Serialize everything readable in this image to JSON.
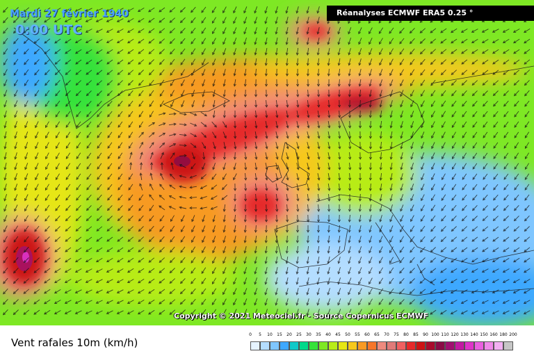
{
  "header": {
    "date_line": "Mardi 27 février 1940",
    "time_line": "0:00 UTC",
    "source": "Réanalyses ECMWF ERA5 0.25 °"
  },
  "map": {
    "copyright": "Copyright © 2021 Meteociel.fr - Source Copernicus ECMWF",
    "wind_direction_dominant": "south-southeast"
  },
  "legend": {
    "field_title": "Vent rafales 10m (km/h)",
    "ticks": [
      "0",
      "5",
      "10",
      "15",
      "20",
      "25",
      "30",
      "35",
      "40",
      "45",
      "50",
      "55",
      "60",
      "65",
      "70",
      "75",
      "80",
      "85",
      "90",
      "100",
      "110",
      "120",
      "130",
      "140",
      "150",
      "160",
      "180",
      "200"
    ],
    "colors": [
      "#e6f3ff",
      "#b4ddff",
      "#7fc6ff",
      "#3ea8ff",
      "#0fc9c9",
      "#00d98a",
      "#35e23a",
      "#7ee824",
      "#b8ec18",
      "#e6e614",
      "#f6c81c",
      "#f79a24",
      "#f5762a",
      "#ee8a7e",
      "#e07a78",
      "#f06060",
      "#e62a2a",
      "#cc1414",
      "#a80c2c",
      "#8a0c46",
      "#a01070",
      "#c21aa2",
      "#de34c8",
      "#ea5fe0",
      "#f08aea",
      "#f2b0f2",
      "#c6c6c6"
    ]
  }
}
